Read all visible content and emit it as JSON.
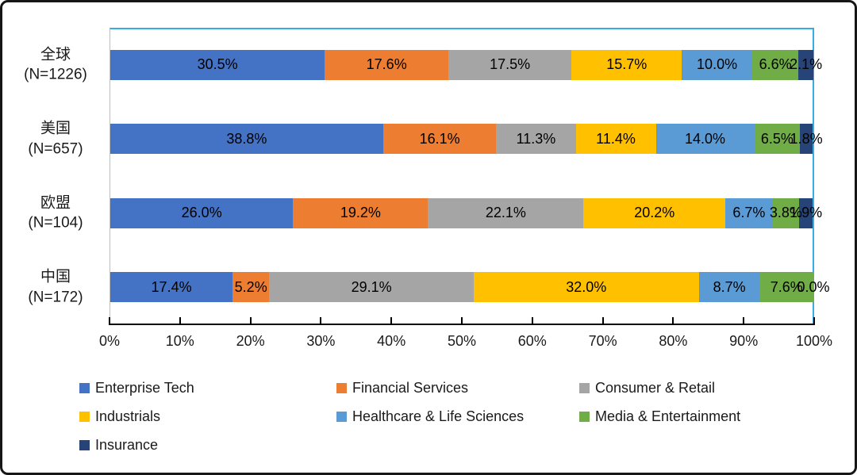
{
  "chart_data": {
    "type": "bar",
    "stacked": true,
    "orientation": "horizontal",
    "title": "",
    "categories": [
      {
        "line1": "全球",
        "line2": "(N=1226)"
      },
      {
        "line1": "美国",
        "line2": "(N=657)"
      },
      {
        "line1": "欧盟",
        "line2": "(N=104)"
      },
      {
        "line1": "中国",
        "line2": "(N=172)"
      }
    ],
    "series": [
      {
        "name": "Enterprise Tech",
        "color": "#4472C4",
        "values": [
          30.5,
          38.8,
          26.0,
          17.4
        ],
        "labels": [
          "30.5%",
          "38.8%",
          "26.0%",
          "17.4%"
        ]
      },
      {
        "name": "Financial Services",
        "color": "#ED7D31",
        "values": [
          17.6,
          16.1,
          19.2,
          5.2
        ],
        "labels": [
          "17.6%",
          "16.1%",
          "19.2%",
          "5.2%"
        ]
      },
      {
        "name": "Consumer & Retail",
        "color": "#A5A5A5",
        "values": [
          17.5,
          11.3,
          22.1,
          29.1
        ],
        "labels": [
          "17.5%",
          "11.3%",
          "22.1%",
          "29.1%"
        ]
      },
      {
        "name": "Industrials",
        "color": "#FFC000",
        "values": [
          15.7,
          11.4,
          20.2,
          32.0
        ],
        "labels": [
          "15.7%",
          "11.4%",
          "20.2%",
          "32.0%"
        ]
      },
      {
        "name": "Healthcare & Life Sciences",
        "color": "#5B9BD5",
        "values": [
          10.0,
          14.0,
          6.7,
          8.7
        ],
        "labels": [
          "10.0%",
          "14.0%",
          "6.7%",
          "8.7%"
        ]
      },
      {
        "name": "Media & Entertainment",
        "color": "#70AD47",
        "values": [
          6.6,
          6.5,
          3.8,
          7.6
        ],
        "labels": [
          "6.6%",
          "6.5%",
          "3.8%",
          "7.6%"
        ]
      },
      {
        "name": "Insurance",
        "color": "#264478",
        "values": [
          2.1,
          1.8,
          1.9,
          0.0
        ],
        "labels": [
          "2.1%",
          "1.8%",
          "1.9%",
          "0.0%"
        ]
      }
    ],
    "x_axis": {
      "min": 0,
      "max": 100,
      "ticks": [
        "0%",
        "10%",
        "20%",
        "30%",
        "40%",
        "50%",
        "60%",
        "70%",
        "80%",
        "90%",
        "100%"
      ]
    },
    "legend": {
      "position": "bottom",
      "entries": [
        "Enterprise Tech",
        "Financial Services",
        "Consumer & Retail",
        "Industrials",
        "Healthcare & Life Sciences",
        "Media & Entertainment",
        "Insurance"
      ]
    },
    "grid": false
  },
  "colors": {
    "plot_border": "#38ADE3",
    "axis_line": "#000000",
    "frame_border": "#161616",
    "background": "#FFFFFF",
    "label_text": "#000000"
  }
}
